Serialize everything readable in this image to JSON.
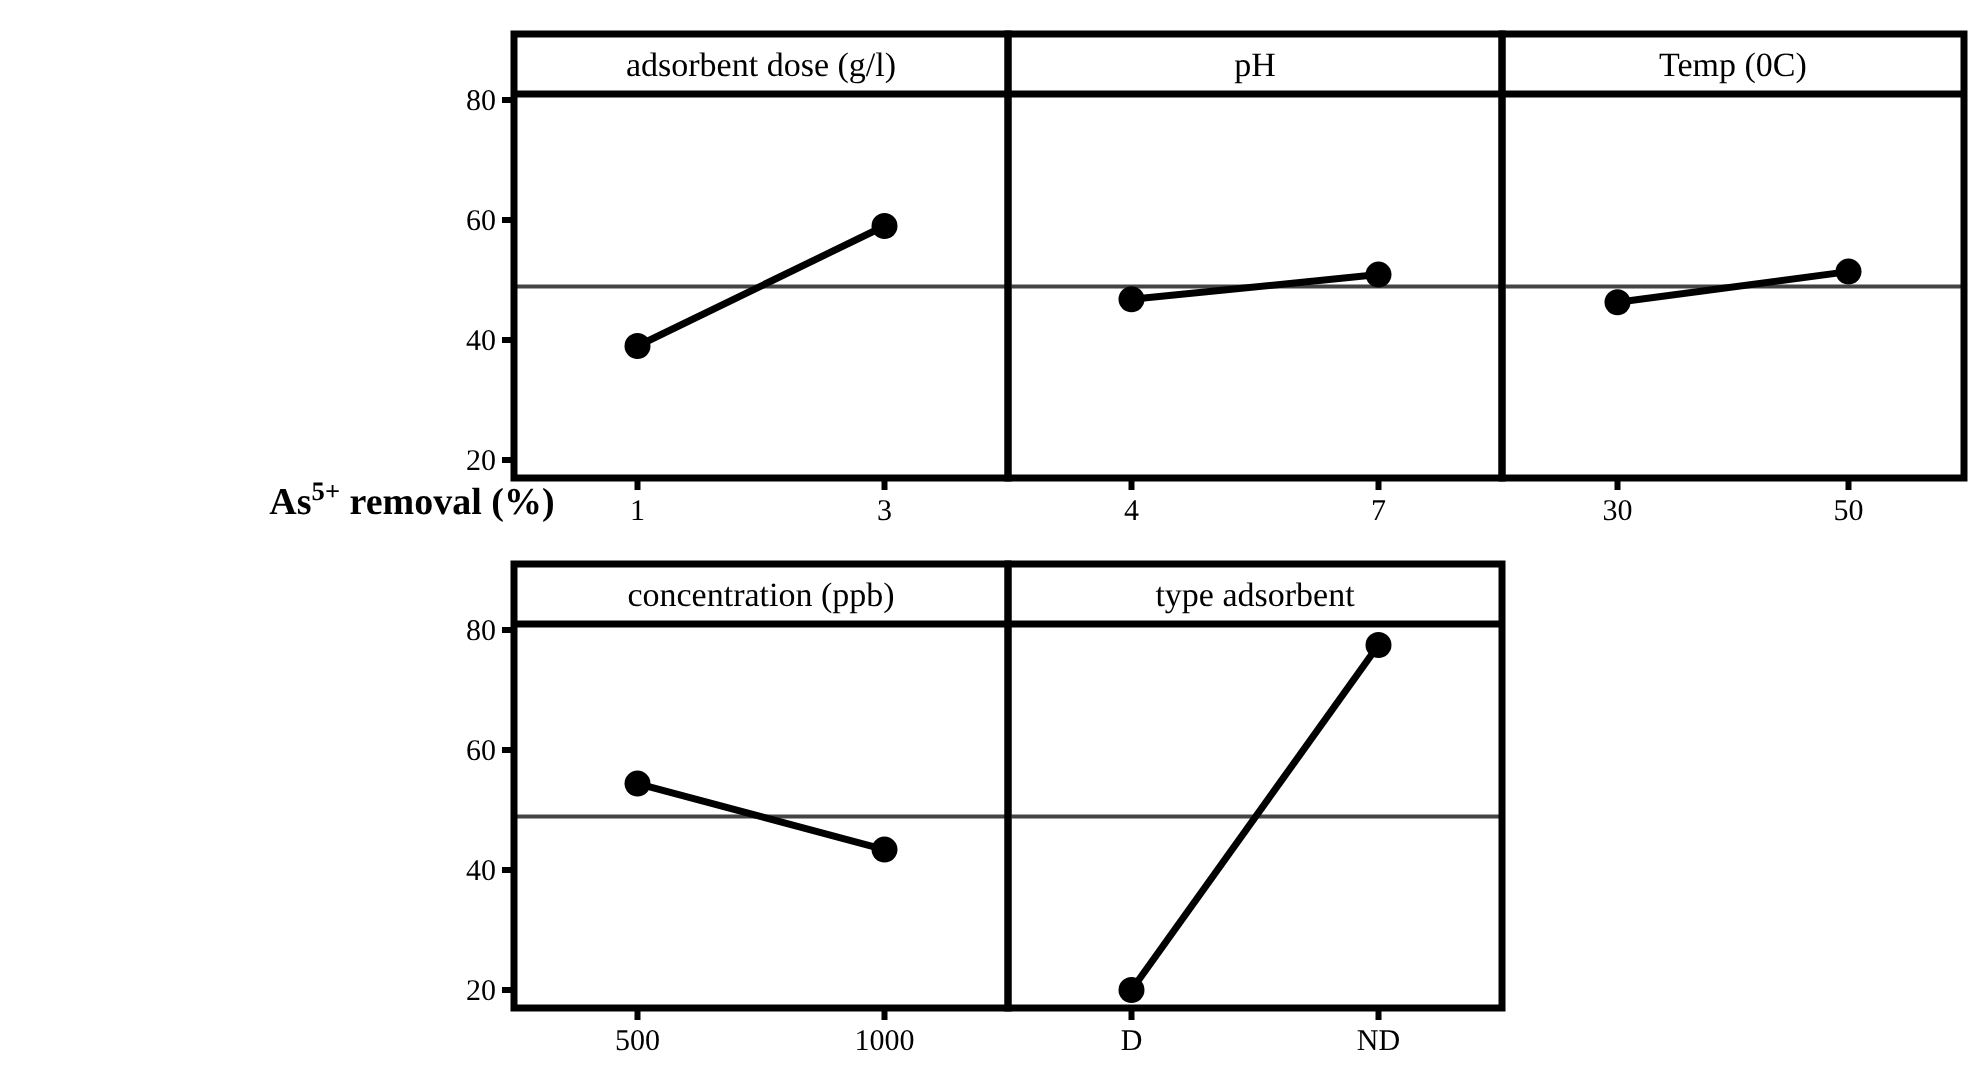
{
  "chart_data": [
    {
      "type": "line",
      "title": "adsorbent dose (g/l)",
      "ylabel": "As$^{5+}$ removal (%)",
      "categories": [
        "1",
        "3"
      ],
      "series": [
        {
          "color": "#000000",
          "values": [
            39,
            59
          ]
        }
      ],
      "ylim": [
        17,
        81
      ],
      "yticks": [
        20,
        40,
        60,
        80
      ],
      "ref_lines": [
        {
          "axis": "y",
          "value": 48.9,
          "color": "#444444"
        }
      ],
      "marker": "circle",
      "line_style": "solid",
      "grid": false
    },
    {
      "type": "line",
      "title": "pH",
      "categories": [
        "4",
        "7"
      ],
      "series": [
        {
          "color": "#000000",
          "values": [
            46.8,
            50.9
          ]
        }
      ],
      "ylim": [
        17,
        81
      ],
      "ref_lines": [
        {
          "axis": "y",
          "value": 48.9,
          "color": "#444444"
        }
      ],
      "marker": "circle",
      "line_style": "solid",
      "grid": false,
      "tick_labels": "x"
    },
    {
      "type": "line",
      "title": "Temp (0C)",
      "categories": [
        "30",
        "50"
      ],
      "series": [
        {
          "color": "#000000",
          "values": [
            46.3,
            51.4
          ]
        }
      ],
      "ylim": [
        17,
        81
      ],
      "ref_lines": [
        {
          "axis": "y",
          "value": 48.9,
          "color": "#444444"
        }
      ],
      "marker": "circle",
      "line_style": "solid",
      "grid": false,
      "tick_labels": "x"
    },
    {
      "type": "line",
      "title": "concentration (ppb)",
      "categories": [
        "500",
        "1000"
      ],
      "series": [
        {
          "color": "#000000",
          "values": [
            54.4,
            43.4
          ]
        }
      ],
      "ylim": [
        17,
        81
      ],
      "yticks": [
        20,
        40,
        60,
        80
      ],
      "ref_lines": [
        {
          "axis": "y",
          "value": 48.9,
          "color": "#444444"
        }
      ],
      "marker": "circle",
      "line_style": "solid",
      "grid": false
    },
    {
      "type": "line",
      "title": "type adsorbent",
      "categories": [
        "D",
        "ND"
      ],
      "series": [
        {
          "color": "#000000",
          "values": [
            20,
            77.5
          ]
        }
      ],
      "ylim": [
        17,
        81
      ],
      "ref_lines": [
        {
          "axis": "y",
          "value": 48.9,
          "color": "#444444"
        }
      ],
      "marker": "circle",
      "line_style": "solid",
      "grid": false,
      "tick_labels": "x"
    }
  ]
}
